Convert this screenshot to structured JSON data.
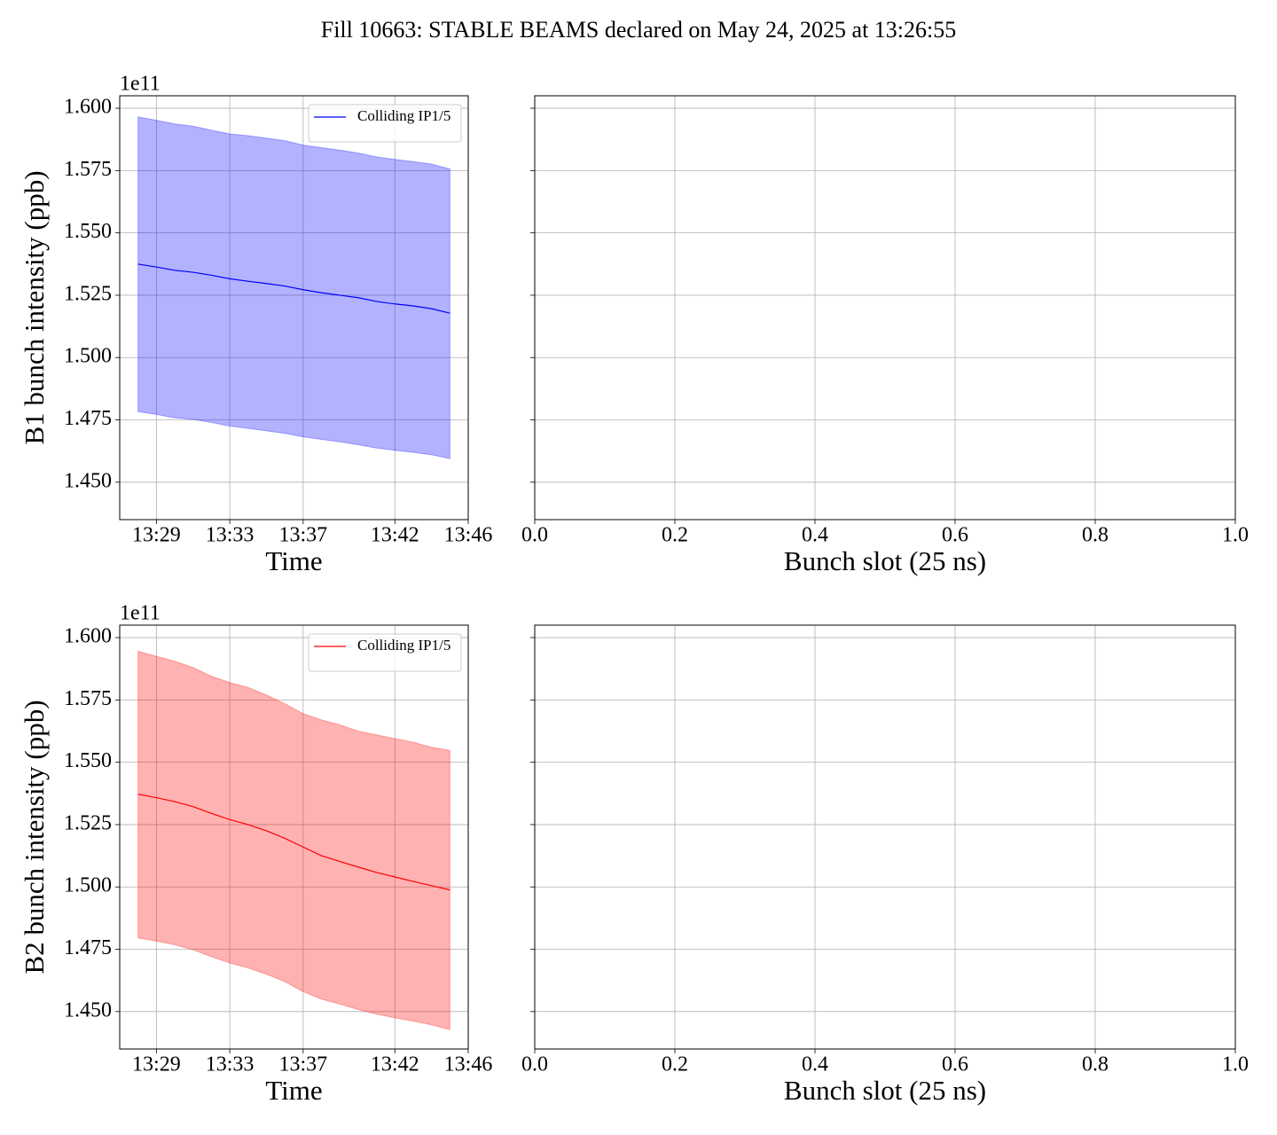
{
  "title": "Fill 10663: STABLE BEAMS declared on May 24, 2025 at 13:26:55",
  "chart_data": [
    {
      "type": "line",
      "xlabel": "Time",
      "ylabel": "B1 bunch intensity (ppb)",
      "y_offset_label": "1e11",
      "x": [
        "13:28",
        "13:29",
        "13:30",
        "13:31",
        "13:32",
        "13:33",
        "13:34",
        "13:35",
        "13:36",
        "13:37",
        "13:38",
        "13:39",
        "13:40",
        "13:41",
        "13:42",
        "13:43",
        "13:44",
        "13:45"
      ],
      "series": [
        {
          "name": "Colliding IP1/5",
          "color": "#0000ff",
          "band_alpha": 0.3,
          "values": [
            1.5375,
            1.5363,
            1.535,
            1.5342,
            1.533,
            1.5316,
            1.5306,
            1.5297,
            1.5287,
            1.5272,
            1.526,
            1.525,
            1.524,
            1.5225,
            1.5215,
            1.5207,
            1.5196,
            1.5178
          ],
          "band_upper": [
            1.5965,
            1.5952,
            1.5937,
            1.5928,
            1.5912,
            1.5897,
            1.589,
            1.588,
            1.587,
            1.5852,
            1.5842,
            1.5832,
            1.582,
            1.5805,
            1.5795,
            1.5786,
            1.5776,
            1.5756
          ],
          "band_lower": [
            1.4783,
            1.4772,
            1.4758,
            1.4752,
            1.474,
            1.4725,
            1.4716,
            1.4706,
            1.4696,
            1.4682,
            1.4672,
            1.4662,
            1.465,
            1.4637,
            1.4628,
            1.462,
            1.461,
            1.4595
          ]
        }
      ],
      "xlim": [
        "13:27",
        "13:46"
      ],
      "xticks": [
        "13:29",
        "13:33",
        "13:37",
        "13:42",
        "13:46"
      ],
      "ylim": [
        1.435,
        1.605
      ],
      "yticks": [
        {
          "value": 1.45,
          "label": "1.450"
        },
        {
          "value": 1.475,
          "label": "1.475"
        },
        {
          "value": 1.5,
          "label": "1.500"
        },
        {
          "value": 1.525,
          "label": "1.525"
        },
        {
          "value": 1.55,
          "label": "1.550"
        },
        {
          "value": 1.575,
          "label": "1.575"
        },
        {
          "value": 1.6,
          "label": "1.600"
        }
      ],
      "grid": true,
      "legend": "upper right"
    },
    {
      "type": "empty",
      "xlabel": "Bunch slot (25 ns)",
      "series": [],
      "xlim": [
        0,
        1
      ],
      "xticks": [
        {
          "value": 0,
          "label": "0.0"
        },
        {
          "value": 0.2,
          "label": "0.2"
        },
        {
          "value": 0.4,
          "label": "0.4"
        },
        {
          "value": 0.6,
          "label": "0.6"
        },
        {
          "value": 0.8,
          "label": "0.8"
        },
        {
          "value": 1,
          "label": "1.0"
        }
      ],
      "ylim": [
        1.435,
        1.605
      ],
      "yticks": [
        1.45,
        1.475,
        1.5,
        1.525,
        1.55,
        1.575,
        1.6
      ],
      "ytick_labels": false,
      "grid": true
    },
    {
      "type": "line",
      "xlabel": "Time",
      "ylabel": "B2 bunch intensity (ppb)",
      "y_offset_label": "1e11",
      "x": [
        "13:28",
        "13:29",
        "13:30",
        "13:31",
        "13:32",
        "13:33",
        "13:34",
        "13:35",
        "13:36",
        "13:37",
        "13:38",
        "13:39",
        "13:40",
        "13:41",
        "13:42",
        "13:43",
        "13:44",
        "13:45"
      ],
      "series": [
        {
          "name": "Colliding IP1/5",
          "color": "#ff0000",
          "band_alpha": 0.3,
          "values": [
            1.5372,
            1.5358,
            1.5342,
            1.5322,
            1.5295,
            1.527,
            1.525,
            1.5225,
            1.5195,
            1.516,
            1.5125,
            1.5102,
            1.508,
            1.5058,
            1.504,
            1.5022,
            1.5005,
            1.4988
          ],
          "band_upper": [
            1.5945,
            1.5925,
            1.5905,
            1.588,
            1.5845,
            1.582,
            1.58,
            1.577,
            1.5735,
            1.5695,
            1.567,
            1.565,
            1.5625,
            1.561,
            1.5595,
            1.558,
            1.556,
            1.5548
          ],
          "band_lower": [
            1.4795,
            1.4783,
            1.4768,
            1.4748,
            1.472,
            1.4695,
            1.4675,
            1.465,
            1.462,
            1.458,
            1.455,
            1.453,
            1.4508,
            1.449,
            1.4475,
            1.4462,
            1.4447,
            1.4428
          ]
        }
      ],
      "xlim": [
        "13:27",
        "13:46"
      ],
      "xticks": [
        "13:29",
        "13:33",
        "13:37",
        "13:42",
        "13:46"
      ],
      "ylim": [
        1.435,
        1.605
      ],
      "yticks": [
        {
          "value": 1.45,
          "label": "1.450"
        },
        {
          "value": 1.475,
          "label": "1.475"
        },
        {
          "value": 1.5,
          "label": "1.500"
        },
        {
          "value": 1.525,
          "label": "1.525"
        },
        {
          "value": 1.55,
          "label": "1.550"
        },
        {
          "value": 1.575,
          "label": "1.575"
        },
        {
          "value": 1.6,
          "label": "1.600"
        }
      ],
      "grid": true,
      "legend": "upper right"
    },
    {
      "type": "empty",
      "xlabel": "Bunch slot (25 ns)",
      "series": [],
      "xlim": [
        0,
        1
      ],
      "xticks": [
        {
          "value": 0,
          "label": "0.0"
        },
        {
          "value": 0.2,
          "label": "0.2"
        },
        {
          "value": 0.4,
          "label": "0.4"
        },
        {
          "value": 0.6,
          "label": "0.6"
        },
        {
          "value": 0.8,
          "label": "0.8"
        },
        {
          "value": 1,
          "label": "1.0"
        }
      ],
      "ylim": [
        1.435,
        1.605
      ],
      "yticks": [
        1.45,
        1.475,
        1.5,
        1.525,
        1.55,
        1.575,
        1.6
      ],
      "ytick_labels": false,
      "grid": true
    }
  ]
}
